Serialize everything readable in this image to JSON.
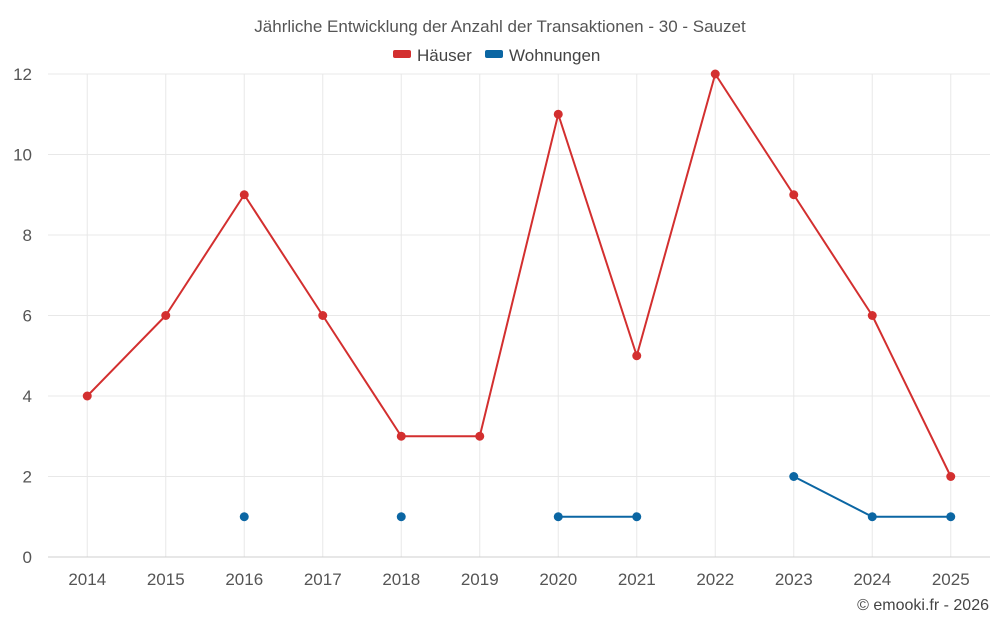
{
  "chart_data": {
    "type": "line",
    "title": "Jährliche Entwicklung der Anzahl der Transaktionen - 30 - Sauzet",
    "xlabel": "",
    "ylabel": "",
    "categories": [
      "2014",
      "2015",
      "2016",
      "2017",
      "2018",
      "2019",
      "2020",
      "2021",
      "2022",
      "2023",
      "2024",
      "2025"
    ],
    "ylim": [
      0,
      12
    ],
    "y_ticks": [
      "0",
      "2",
      "4",
      "6",
      "8",
      "10",
      "12"
    ],
    "grid": true,
    "legend_position": "top-center",
    "series": [
      {
        "name": "Häuser",
        "color": "#d32f2f",
        "values": [
          4,
          6,
          9,
          6,
          3,
          3,
          11,
          5,
          12,
          9,
          6,
          2
        ]
      },
      {
        "name": "Wohnungen",
        "color": "#0b66a3",
        "values": [
          null,
          null,
          1,
          null,
          1,
          null,
          1,
          1,
          null,
          2,
          1,
          1
        ]
      }
    ]
  },
  "credit": "© emooki.fr - 2026"
}
